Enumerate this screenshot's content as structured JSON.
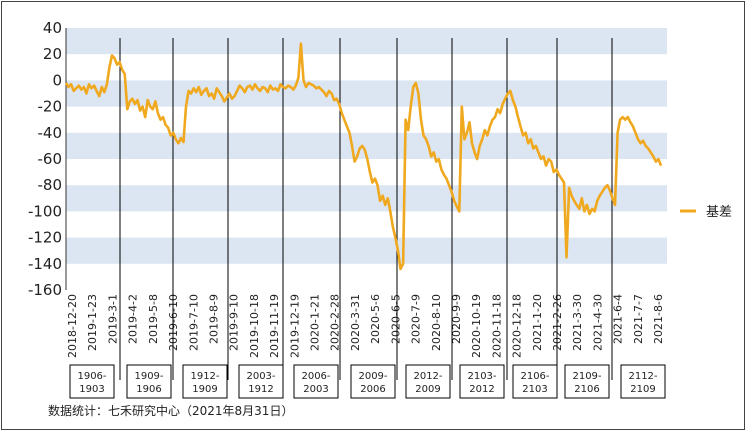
{
  "chart_data": {
    "type": "line",
    "series": [
      {
        "name": "基差",
        "color": "#F0A81E",
        "values": [
          -2,
          -5,
          -3,
          -8,
          -6,
          -4,
          -7,
          -5,
          -10,
          -3,
          -6,
          -4,
          -8,
          -12,
          -5,
          -9,
          -3,
          10,
          19,
          17,
          12,
          14,
          8,
          5,
          -22,
          -16,
          -14,
          -18,
          -15,
          -23,
          -20,
          -28,
          -15,
          -20,
          -22,
          -16,
          -25,
          -30,
          -28,
          -34,
          -36,
          -42,
          -40,
          -45,
          -48,
          -44,
          -47,
          -20,
          -8,
          -10,
          -6,
          -9,
          -5,
          -11,
          -8,
          -6,
          -12,
          -10,
          -14,
          -6,
          -9,
          -12,
          -16,
          -13,
          -10,
          -14,
          -12,
          -8,
          -4,
          -6,
          -9,
          -5,
          -4,
          -7,
          -3,
          -6,
          -8,
          -5,
          -6,
          -9,
          -4,
          -7,
          -6,
          -8,
          -3,
          -5,
          -6,
          -4,
          -5,
          -7,
          -4,
          2,
          28,
          0,
          -5,
          -2,
          -3,
          -4,
          -6,
          -5,
          -7,
          -9,
          -12,
          -8,
          -10,
          -15,
          -14,
          -18,
          -25,
          -30,
          -35,
          -40,
          -50,
          -62,
          -58,
          -52,
          -50,
          -53,
          -60,
          -70,
          -78,
          -75,
          -80,
          -92,
          -88,
          -95,
          -90,
          -100,
          -112,
          -120,
          -130,
          -144,
          -140,
          -30,
          -38,
          -20,
          -5,
          -2,
          -10,
          -30,
          -42,
          -45,
          -50,
          -58,
          -55,
          -62,
          -60,
          -68,
          -72,
          -75,
          -80,
          -85,
          -92,
          -96,
          -100,
          -20,
          -45,
          -40,
          -32,
          -48,
          -55,
          -60,
          -50,
          -45,
          -38,
          -42,
          -35,
          -30,
          -28,
          -22,
          -25,
          -18,
          -14,
          -10,
          -8,
          -15,
          -20,
          -28,
          -35,
          -42,
          -40,
          -48,
          -45,
          -52,
          -50,
          -55,
          -60,
          -58,
          -65,
          -60,
          -62,
          -70,
          -68,
          -72,
          -75,
          -78,
          -135,
          -82,
          -88,
          -92,
          -95,
          -98,
          -90,
          -100,
          -95,
          -102,
          -98,
          -100,
          -92,
          -88,
          -85,
          -82,
          -80,
          -84,
          -90,
          -95,
          -40,
          -30,
          -28,
          -30,
          -28,
          -32,
          -35,
          -40,
          -45,
          -48,
          -46,
          -50,
          -52,
          -55,
          -58,
          -62,
          -60,
          -65
        ]
      }
    ],
    "xlabels": [
      "2018-12-20",
      "2019-1-23",
      "2019-3-1",
      "2019-4-2",
      "2019-5-8",
      "2019-6-10",
      "2019-7-10",
      "2019-8-9",
      "2019-9-10",
      "2019-10-18",
      "2019-11-19",
      "2019-12-19",
      "2020-1-21",
      "2020-2-28",
      "2020-3-31",
      "2020-5-6",
      "2020-6-5",
      "2020-7-9",
      "2020-8-10",
      "2020-9-9",
      "2020-10-19",
      "2020-11-18",
      "2020-12-18",
      "2021-1-20",
      "2021-2-26",
      "2021-3-30",
      "2021-4-30",
      "2021-6-4",
      "2021-7-7",
      "2021-8-6"
    ],
    "yticks": [
      "40",
      "20",
      "0",
      "-20",
      "-40",
      "-60",
      "-80",
      "-100",
      "-120",
      "-140",
      "-160"
    ],
    "ylim": [
      -160,
      40
    ],
    "contracts": [
      "1906-1903",
      "1909-1906",
      "1912-1909",
      "2003-1912",
      "2006-2003",
      "2009-2006",
      "2012-2009",
      "2103-2012",
      "2106-2103",
      "2109-2106",
      "2112-2109"
    ],
    "legend_position": "right",
    "source": "数据统计：七禾研究中心（2021年8月31日）"
  }
}
